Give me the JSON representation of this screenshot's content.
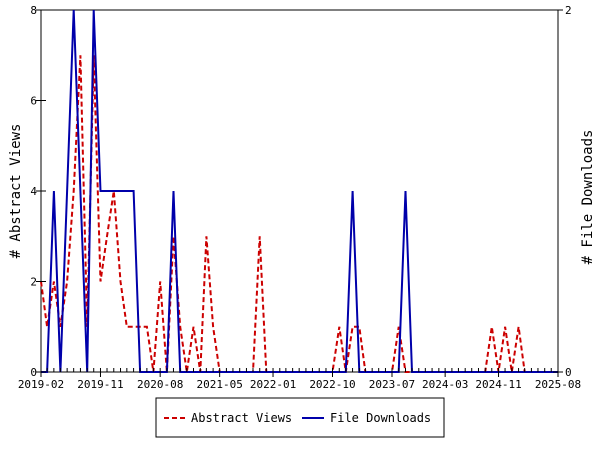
{
  "chart_data": {
    "type": "line",
    "x_tick_labels": [
      "2019-02",
      "2019-11",
      "2020-08",
      "2021-05",
      "2022-01",
      "2022-10",
      "2023-07",
      "2024-03",
      "2024-11",
      "2025-08"
    ],
    "ylabel_left": "# Abstract Views",
    "ylabel_right": "# File Downloads",
    "ylim_left": [
      0,
      8
    ],
    "ylim_right": [
      0,
      2
    ],
    "left_ticks": [
      0,
      2,
      4,
      6,
      8
    ],
    "right_ticks": [
      0,
      2
    ],
    "grid": false,
    "legend_position": "bottom-center",
    "series": [
      {
        "name": "Abstract Views",
        "axis": "left",
        "color": "#cc0000",
        "dash": "dashed",
        "points": [
          [
            "2019-02",
            2
          ],
          [
            "2019-03",
            1
          ],
          [
            "2019-04",
            2
          ],
          [
            "2019-05",
            1
          ],
          [
            "2019-06",
            2
          ],
          [
            "2019-07",
            4
          ],
          [
            "2019-08",
            7
          ],
          [
            "2019-09",
            1
          ],
          [
            "2019-10",
            7
          ],
          [
            "2019-11",
            2
          ],
          [
            "2019-12",
            3
          ],
          [
            "2020-01",
            4
          ],
          [
            "2020-02",
            2
          ],
          [
            "2020-03",
            1
          ],
          [
            "2020-04",
            1
          ],
          [
            "2020-05",
            1
          ],
          [
            "2020-06",
            1
          ],
          [
            "2020-07",
            0
          ],
          [
            "2020-08",
            2
          ],
          [
            "2020-09",
            0
          ],
          [
            "2020-10",
            3
          ],
          [
            "2020-11",
            1
          ],
          [
            "2020-12",
            0
          ],
          [
            "2021-01",
            1
          ],
          [
            "2021-02",
            0
          ],
          [
            "2021-03",
            3
          ],
          [
            "2021-04",
            1
          ],
          [
            "2021-05",
            0
          ],
          [
            "2021-06",
            0
          ],
          [
            "2021-07",
            0
          ],
          [
            "2021-08",
            0
          ],
          [
            "2021-09",
            0
          ],
          [
            "2021-10",
            0
          ],
          [
            "2021-11",
            3
          ],
          [
            "2021-12",
            0
          ],
          [
            "2022-01",
            0
          ],
          [
            "2022-02",
            0
          ],
          [
            "2022-03",
            0
          ],
          [
            "2022-04",
            0
          ],
          [
            "2022-05",
            0
          ],
          [
            "2022-06",
            0
          ],
          [
            "2022-07",
            0
          ],
          [
            "2022-08",
            0
          ],
          [
            "2022-09",
            0
          ],
          [
            "2022-10",
            0
          ],
          [
            "2022-11",
            1
          ],
          [
            "2022-12",
            0
          ],
          [
            "2023-01",
            1
          ],
          [
            "2023-02",
            1
          ],
          [
            "2023-03",
            0
          ],
          [
            "2023-04",
            0
          ],
          [
            "2023-05",
            0
          ],
          [
            "2023-06",
            0
          ],
          [
            "2023-07",
            0
          ],
          [
            "2023-08",
            1
          ],
          [
            "2023-09",
            0
          ],
          [
            "2023-10",
            0
          ],
          [
            "2023-11",
            0
          ],
          [
            "2023-12",
            0
          ],
          [
            "2024-01",
            0
          ],
          [
            "2024-02",
            0
          ],
          [
            "2024-03",
            0
          ],
          [
            "2024-04",
            0
          ],
          [
            "2024-05",
            0
          ],
          [
            "2024-06",
            0
          ],
          [
            "2024-07",
            0
          ],
          [
            "2024-08",
            0
          ],
          [
            "2024-09",
            0
          ],
          [
            "2024-10",
            1
          ],
          [
            "2024-11",
            0
          ],
          [
            "2024-12",
            1
          ],
          [
            "2025-01",
            0
          ],
          [
            "2025-02",
            1
          ],
          [
            "2025-03",
            0
          ],
          [
            "2025-04",
            0
          ],
          [
            "2025-05",
            0
          ],
          [
            "2025-06",
            0
          ],
          [
            "2025-07",
            0
          ],
          [
            "2025-08",
            0
          ]
        ]
      },
      {
        "name": "File Downloads",
        "axis": "right",
        "color": "#0000aa",
        "dash": "solid",
        "points": [
          [
            "2019-02",
            0
          ],
          [
            "2019-03",
            0
          ],
          [
            "2019-04",
            1
          ],
          [
            "2019-05",
            0
          ],
          [
            "2019-06",
            1
          ],
          [
            "2019-07",
            2
          ],
          [
            "2019-08",
            1
          ],
          [
            "2019-09",
            0
          ],
          [
            "2019-10",
            2
          ],
          [
            "2019-11",
            1
          ],
          [
            "2019-12",
            1
          ],
          [
            "2020-01",
            1
          ],
          [
            "2020-02",
            1
          ],
          [
            "2020-03",
            1
          ],
          [
            "2020-04",
            1
          ],
          [
            "2020-05",
            0
          ],
          [
            "2020-06",
            0
          ],
          [
            "2020-07",
            0
          ],
          [
            "2020-08",
            0
          ],
          [
            "2020-09",
            0
          ],
          [
            "2020-10",
            1
          ],
          [
            "2020-11",
            0
          ],
          [
            "2020-12",
            0
          ],
          [
            "2021-01",
            0
          ],
          [
            "2021-02",
            0
          ],
          [
            "2021-03",
            0
          ],
          [
            "2021-04",
            0
          ],
          [
            "2021-05",
            0
          ],
          [
            "2021-06",
            0
          ],
          [
            "2021-07",
            0
          ],
          [
            "2021-08",
            0
          ],
          [
            "2021-09",
            0
          ],
          [
            "2021-10",
            0
          ],
          [
            "2021-11",
            0
          ],
          [
            "2021-12",
            0
          ],
          [
            "2022-01",
            0
          ],
          [
            "2022-02",
            0
          ],
          [
            "2022-03",
            0
          ],
          [
            "2022-04",
            0
          ],
          [
            "2022-05",
            0
          ],
          [
            "2022-06",
            0
          ],
          [
            "2022-07",
            0
          ],
          [
            "2022-08",
            0
          ],
          [
            "2022-09",
            0
          ],
          [
            "2022-10",
            0
          ],
          [
            "2022-11",
            0
          ],
          [
            "2022-12",
            0
          ],
          [
            "2023-01",
            1
          ],
          [
            "2023-02",
            0
          ],
          [
            "2023-03",
            0
          ],
          [
            "2023-04",
            0
          ],
          [
            "2023-05",
            0
          ],
          [
            "2023-06",
            0
          ],
          [
            "2023-07",
            0
          ],
          [
            "2023-08",
            0
          ],
          [
            "2023-09",
            1
          ],
          [
            "2023-10",
            0
          ],
          [
            "2023-11",
            0
          ],
          [
            "2023-12",
            0
          ],
          [
            "2024-01",
            0
          ],
          [
            "2024-02",
            0
          ],
          [
            "2024-03",
            0
          ],
          [
            "2024-04",
            0
          ],
          [
            "2024-05",
            0
          ],
          [
            "2024-06",
            0
          ],
          [
            "2024-07",
            0
          ],
          [
            "2024-08",
            0
          ],
          [
            "2024-09",
            0
          ],
          [
            "2024-10",
            0
          ],
          [
            "2024-11",
            0
          ],
          [
            "2024-12",
            0
          ],
          [
            "2025-01",
            0
          ],
          [
            "2025-02",
            0
          ],
          [
            "2025-03",
            0
          ],
          [
            "2025-04",
            0
          ],
          [
            "2025-05",
            0
          ],
          [
            "2025-06",
            0
          ],
          [
            "2025-07",
            0
          ],
          [
            "2025-08",
            0
          ]
        ]
      }
    ]
  }
}
